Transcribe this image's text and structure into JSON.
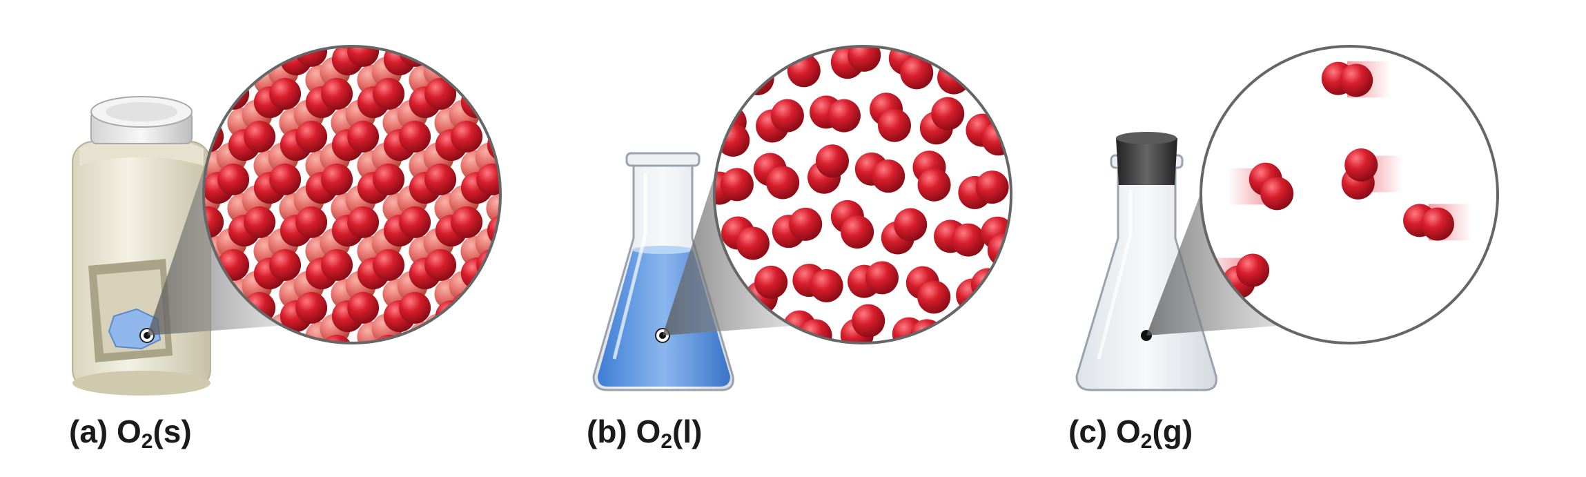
{
  "panels": [
    {
      "id": "solid",
      "caption_letter": "(a)",
      "caption_formula": "O",
      "caption_subscript": "2",
      "caption_state": "(s)"
    },
    {
      "id": "liquid",
      "caption_letter": "(b)",
      "caption_formula": "O",
      "caption_subscript": "2",
      "caption_state": "(l)"
    },
    {
      "id": "gas",
      "caption_letter": "(c)",
      "caption_formula": "O",
      "caption_subscript": "2",
      "caption_state": "(g)"
    }
  ],
  "colors": {
    "molecule": "#d81e2c",
    "molecule_back": "#e87570",
    "liquid": "#5d94dc",
    "solid_block": "#8fb7ec",
    "container": "#ece8d4",
    "stopper": "#333333",
    "magnifier_border": "#666666",
    "cone": "#7a7a7a"
  }
}
